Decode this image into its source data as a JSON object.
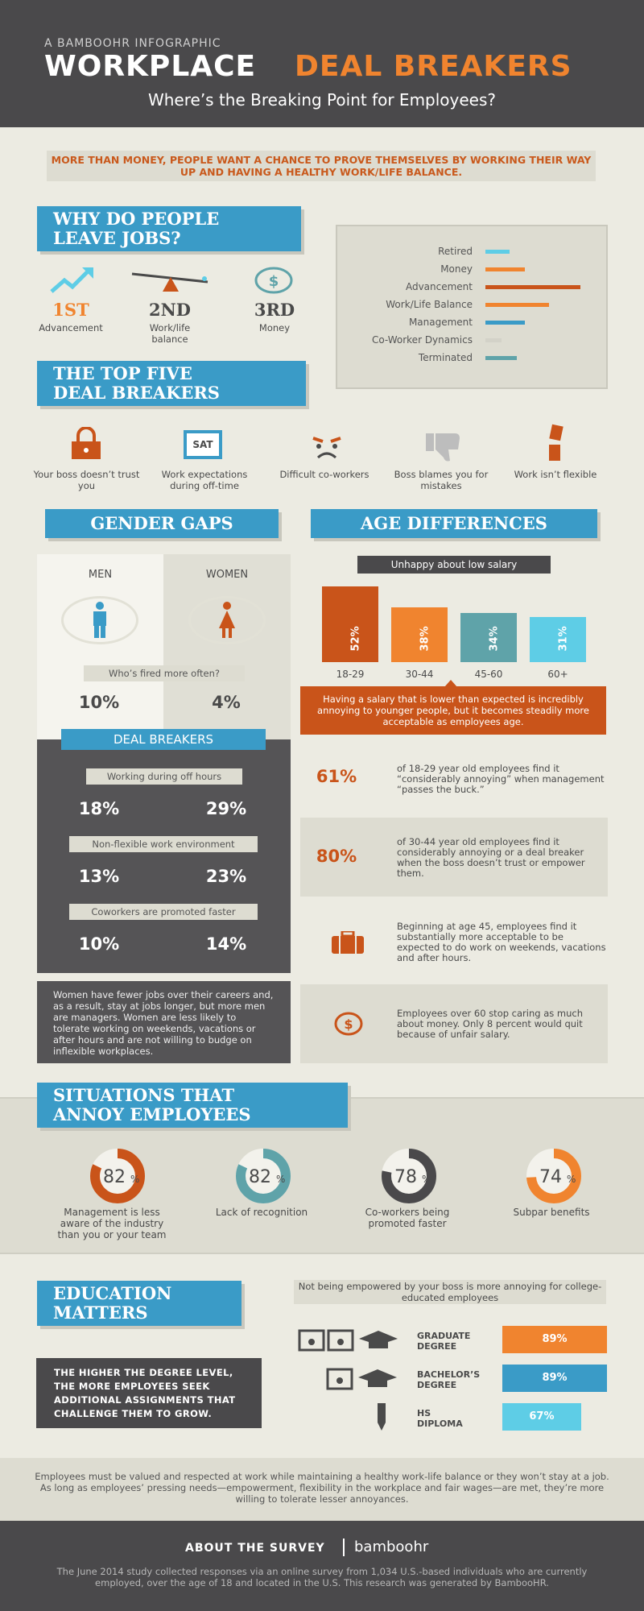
{
  "header": {
    "kicker": "A BAMBOOHR INFOGRAPHIC",
    "title_a": "WORKPLACE",
    "title_b": "DEAL BREAKERS",
    "subtitle": "Where’s the Breaking Point for Employees?"
  },
  "intro": "MORE THAN MONEY, PEOPLE WANT A CHANCE TO PROVE THEMSELVES BY WORKING THEIR WAY UP AND HAVING A HEALTHY WORK/LIFE BALANCE.",
  "why": {
    "title_l1": "WHY DO PEOPLE",
    "title_l2": "LEAVE JOBS?",
    "ranks": [
      {
        "rank": "1ST",
        "label": "Advancement"
      },
      {
        "rank": "2ND",
        "label": "Work/life balance"
      },
      {
        "rank": "3RD",
        "label": "Money"
      }
    ]
  },
  "chart_data": {
    "type": "bar",
    "categories": [
      "Retired",
      "Money",
      "Advancement",
      "Work/Life Balance",
      "Management",
      "Co-Worker Dynamics",
      "Terminated"
    ],
    "values": [
      3,
      5,
      12,
      8,
      5,
      2,
      4
    ],
    "colors": [
      "#5ecde6",
      "#f0842f",
      "#c9541a",
      "#f0842f",
      "#3a9bc7",
      "#d3d2c8",
      "#5fa3a9"
    ]
  },
  "top5": {
    "title_l1": "THE TOP FIVE",
    "title_l2": "DEAL BREAKERS",
    "items": [
      "Your boss doesn’t trust you",
      "Work expectations during off-time",
      "Difficult co-workers",
      "Boss blames you for mistakes",
      "Work isn’t flexible"
    ],
    "sat": "SAT"
  },
  "gender": {
    "title": "GENDER GAPS",
    "men": "MEN",
    "women": "WOMEN",
    "fired_q": "Who’s fired more often?",
    "fired_men": "10%",
    "fired_women": "4%",
    "deal": "DEAL BREAKERS",
    "rows": [
      {
        "label": "Working during off hours",
        "men": "18%",
        "women": "29%"
      },
      {
        "label": "Non-flexible work environment",
        "men": "13%",
        "women": "23%"
      },
      {
        "label": "Coworkers are promoted faster",
        "men": "10%",
        "women": "14%"
      }
    ],
    "note": "Women have fewer jobs over their careers and, as a result, stay at jobs longer, but more men are managers. Women are less likely to tolerate working on weekends, vacations or after hours and are not willing to budge on inflexible workplaces."
  },
  "age": {
    "title": "AGE DIFFERENCES",
    "chart_title": "Unhappy about low salary",
    "bars": [
      {
        "label": "18-29",
        "pct": "52%",
        "value": 52,
        "color": "#c9541a"
      },
      {
        "label": "30-44",
        "pct": "38%",
        "value": 38,
        "color": "#f0842f"
      },
      {
        "label": "45-60",
        "pct": "34%",
        "value": 34,
        "color": "#5fa3a9"
      },
      {
        "label": "60+",
        "pct": "31%",
        "value": 31,
        "color": "#5ecde6"
      }
    ],
    "callout": "Having a salary that is lower than expected is incredibly annoying to younger people, but it becomes steadily more acceptable as employees age.",
    "stats": [
      {
        "pct": "61%",
        "text": "of 18-29 year old employees find it “considerably annoying” when management “passes the buck.”"
      },
      {
        "pct": "80%",
        "text": "of 30-44 year old employees find it considerably annoying or a deal breaker when the boss doesn’t trust or empower them."
      },
      {
        "text": "Beginning at age 45, employees find it substantially more acceptable to be expected to do work on weekends, vacations and after hours."
      },
      {
        "text": "Employees over 60 stop caring as much about money. Only 8 percent would quit because of unfair salary."
      }
    ]
  },
  "situations": {
    "title_l1": "SITUATIONS THAT",
    "title_l2": "ANNOY EMPLOYEES",
    "items": [
      {
        "num": "82",
        "label": "Management is less aware of the industry than you or your team",
        "value": 82,
        "color": "#c9541a"
      },
      {
        "num": "82",
        "label": "Lack of recognition",
        "value": 82,
        "color": "#5fa3a9"
      },
      {
        "num": "78",
        "label": "Co-workers being promoted faster",
        "value": 78,
        "color": "#4a494b"
      },
      {
        "num": "74",
        "label": "Subpar benefits",
        "value": 74,
        "color": "#f0842f"
      }
    ],
    "pct_sign": "%"
  },
  "education": {
    "title_l1": "EDUCATION",
    "title_l2": "MATTERS",
    "subtitle": "Not being empowered by your boss is more annoying for college-educated employees",
    "box": "THE HIGHER THE DEGREE LEVEL, THE MORE EMPLOYEES SEEK ADDITIONAL ASSIGNMENTS THAT CHALLENGE THEM TO GROW.",
    "degrees": [
      {
        "l1": "GRADUATE",
        "l2": "DEGREE",
        "pct": "89%",
        "value": 89,
        "color": "#f0842f"
      },
      {
        "l1": "BACHELOR’S",
        "l2": "DEGREE",
        "pct": "89%",
        "value": 89,
        "color": "#3a9bc7"
      },
      {
        "l1": "HS",
        "l2": "DIPLOMA",
        "pct": "67%",
        "value": 67,
        "color": "#5ecde6"
      }
    ]
  },
  "closing": "Employees must be valued and respected at work while maintaining a healthy work-life balance or they won’t stay at a job. As long as employees’ pressing needs—empowerment, flexibility in the workplace and fair wages—are met, they’re more willing to tolerate lesser annoyances.",
  "footer": {
    "about": "ABOUT THE SURVEY",
    "brand": "bamboohr",
    "text": "The June 2014 study collected responses via an online survey from 1,034 U.S.-based individuals who are currently employed, over the age of 18 and located in the U.S. This research was generated by BambooHR."
  }
}
